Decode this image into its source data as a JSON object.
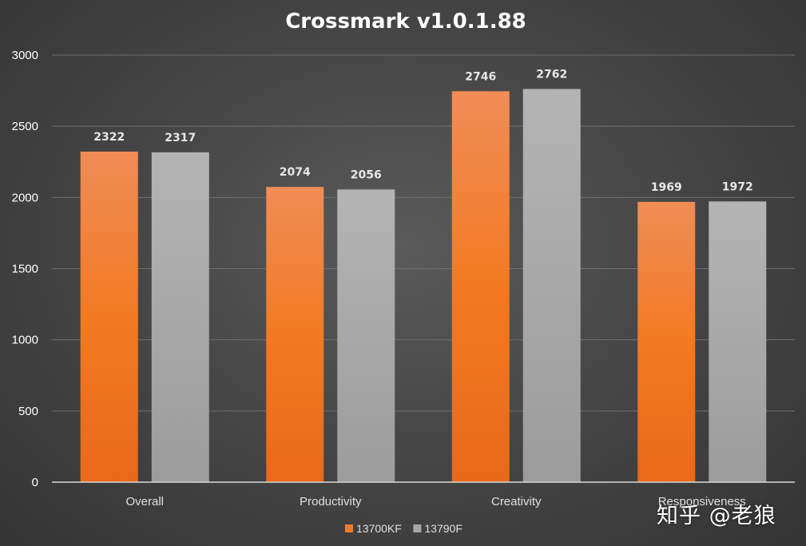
{
  "chart_data": {
    "type": "bar",
    "title": "Crossmark v1.0.1.88",
    "xlabel": "",
    "ylabel": "",
    "categories": [
      "Overall",
      "Productivity",
      "Creativity",
      "Responsiveness"
    ],
    "series": [
      {
        "name": "13700KF",
        "values": [
          2322,
          2074,
          2746,
          1969
        ],
        "color": "#f07c2c"
      },
      {
        "name": "13790F",
        "values": [
          2317,
          2056,
          2762,
          1972
        ],
        "color": "#a6a6a6"
      }
    ],
    "ylim": [
      0,
      3000
    ],
    "yticks": [
      0,
      500,
      1000,
      1500,
      2000,
      2500,
      3000
    ],
    "grid": true,
    "legend_position": "bottom-center",
    "data_labels": true
  },
  "watermark": {
    "text": "知乎 @老狼"
  }
}
